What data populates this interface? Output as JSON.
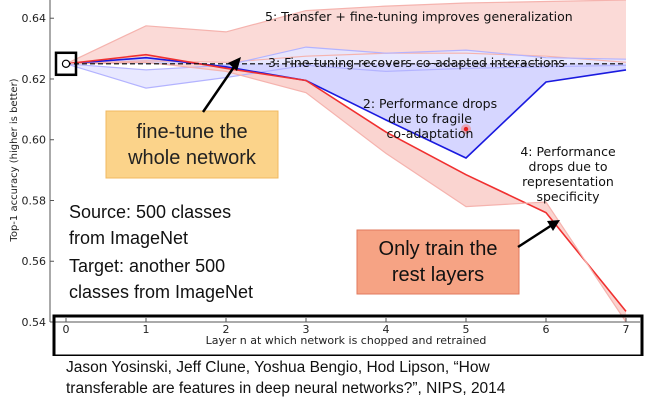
{
  "chart_data": {
    "type": "line",
    "xlabel": "Layer n at which network is chopped and retrained",
    "ylabel": "Top-1 accuracy (higher is better)",
    "x": [
      0,
      1,
      2,
      3,
      4,
      5,
      6,
      7
    ],
    "xticks": [
      "0",
      "1",
      "2",
      "3",
      "4",
      "5",
      "6",
      "7"
    ],
    "yticks": [
      "0.54",
      "0.56",
      "0.58",
      "0.60",
      "0.62",
      "0.64"
    ],
    "ylim": [
      0.54,
      0.646
    ],
    "xlim": [
      -0.2,
      7.2
    ],
    "baseline": {
      "x": 0,
      "y": 0.625
    },
    "series": [
      {
        "key": "transfer_ft_band_upper",
        "values": [
          0.625,
          0.6375,
          0.6355,
          0.6425,
          0.644,
          0.645,
          0.6455,
          0.646
        ],
        "color": "#f5b3ae"
      },
      {
        "key": "transfer_ft_band_lower",
        "values": [
          0.625,
          0.626,
          0.6255,
          0.6275,
          0.6285,
          0.6285,
          0.6275,
          0.6255
        ],
        "color": "#f5b3ae"
      },
      {
        "key": "selffer_ft",
        "values": [
          0.625,
          0.623,
          0.6245,
          0.6305,
          0.6285,
          0.6295,
          0.627,
          0.6265
        ],
        "color": "#b3b3ff"
      },
      {
        "key": "selffer_ft_lower",
        "values": [
          0.625,
          0.617,
          0.6205,
          0.6245,
          0.6225,
          0.6235,
          0.624,
          0.6245
        ],
        "color": "#b3b3ff"
      },
      {
        "key": "selffer_frozen",
        "values": [
          0.625,
          0.627,
          0.624,
          0.6195,
          0.6065,
          0.594,
          0.619,
          0.623
        ],
        "color": "#1a1adf"
      },
      {
        "key": "transfer_frozen",
        "values": [
          0.625,
          0.628,
          0.6235,
          0.6195,
          0.6025,
          0.5885,
          0.576,
          0.5435
        ],
        "color": "#f03030"
      },
      {
        "key": "transfer_frozen_band_lower",
        "values": [
          0.625,
          0.6255,
          0.6225,
          0.6155,
          0.5955,
          0.578,
          0.5795,
          0.54
        ],
        "color": "#f5b3ae"
      }
    ],
    "annotations": [
      "5: Transfer + fine-tuning improves generalization",
      "3: Fine-tuning recovers co-adapted interactions",
      "2: Performance drops\ndue to fragile\nco-adaptation",
      "4: Performance\ndrops due to\nrepresentation\nspecificity"
    ],
    "callouts": [
      {
        "text": "fine-tune the\nwhole network",
        "fill": "#fbd38a"
      },
      {
        "text": "Only train the\nrest layers",
        "fill": "#f6a384"
      }
    ],
    "info": [
      "Source: 500 classes",
      "from ImageNet",
      "Target: another 500",
      "classes from ImageNet"
    ],
    "colors": {
      "red": "#f03030",
      "blue": "#1a1adf",
      "pink_fill": "#fad4d0",
      "lavender": "#b3b3ff"
    }
  },
  "citation": {
    "line1": "Jason Yosinski, Jeff Clune, Yoshua Bengio, Hod Lipson, “How",
    "line2": "transferable are features in deep neural networks?”, NIPS, 2014"
  }
}
